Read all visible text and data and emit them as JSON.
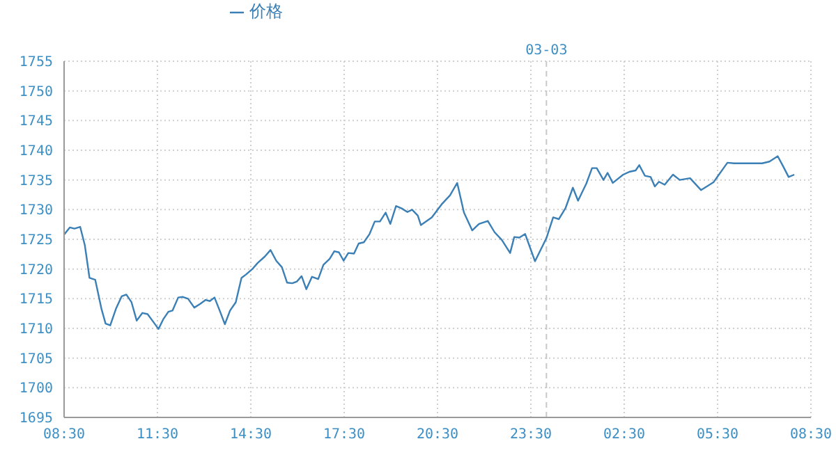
{
  "chart_data": {
    "type": "line",
    "legend": "top",
    "grid": true,
    "marker": "none",
    "line_style": "solid",
    "xlim": [
      "--03-02T08:30",
      "--03-03T08:30"
    ],
    "xticks": [
      {
        "value": "--03-02T08:30",
        "label": "08:30"
      },
      {
        "value": "--03-02T11:30",
        "label": "11:30"
      },
      {
        "value": "--03-02T14:30",
        "label": "14:30"
      },
      {
        "value": "--03-02T17:30",
        "label": "17:30"
      },
      {
        "value": "--03-02T20:30",
        "label": "20:30"
      },
      {
        "value": "--03-02T23:30",
        "label": "23:30"
      },
      {
        "value": "--03-03T02:30",
        "label": "02:30"
      },
      {
        "value": "--03-03T05:30",
        "label": "05:30"
      },
      {
        "value": "--03-03T08:30",
        "label": "08:30"
      }
    ],
    "ylim": [
      1695,
      1755
    ],
    "yticks": [
      1695,
      1700,
      1705,
      1710,
      1715,
      1720,
      1725,
      1730,
      1735,
      1740,
      1745,
      1750,
      1755
    ],
    "ref_lines": [
      {
        "axis": "x",
        "value": "--03-03",
        "label": "03-03",
        "color": "#c8c8c8",
        "line_style": "dashed"
      }
    ],
    "x": [
      "--03-02T08:30",
      "--03-02T08:41",
      "--03-02T08:50",
      "--03-02T09:01",
      "--03-02T09:10",
      "--03-02T09:19",
      "--03-02T09:30",
      "--03-02T09:42",
      "--03-02T09:50",
      "--03-02T09:59",
      "--03-02T10:10",
      "--03-02T10:21",
      "--03-02T10:30",
      "--03-02T10:40",
      "--03-02T10:50",
      "--03-02T11:01",
      "--03-02T11:11",
      "--03-02T11:22",
      "--03-02T11:32",
      "--03-02T11:41",
      "--03-02T11:51",
      "--03-02T11:59",
      "--03-02T12:10",
      "--03-02T12:19",
      "--03-02T12:29",
      "--03-02T12:41",
      "--03-02T12:52",
      "--03-02T13:03",
      "--03-02T13:11",
      "--03-02T13:20",
      "--03-02T13:30",
      "--03-02T13:40",
      "--03-02T13:50",
      "--03-02T14:01",
      "--03-02T14:12",
      "--03-02T14:21",
      "--03-02T14:33",
      "--03-02T14:43",
      "--03-02T14:57",
      "--03-02T15:08",
      "--03-02T15:19",
      "--03-02T15:30",
      "--03-02T15:40",
      "--03-02T15:50",
      "--03-02T15:59",
      "--03-02T16:08",
      "--03-02T16:17",
      "--03-02T16:28",
      "--03-02T16:40",
      "--03-02T16:50",
      "--03-02T17:02",
      "--03-02T17:11",
      "--03-02T17:20",
      "--03-02T17:29",
      "--03-02T17:38",
      "--03-02T17:49",
      "--03-02T17:58",
      "--03-02T18:08",
      "--03-02T18:19",
      "--03-02T18:29",
      "--03-02T18:39",
      "--03-02T18:50",
      "--03-02T18:59",
      "--03-02T19:10",
      "--03-02T19:21",
      "--03-02T19:32",
      "--03-02T19:41",
      "--03-02T19:52",
      "--03-02T19:58",
      "--03-02T20:19",
      "--03-02T20:38",
      "--03-02T20:54",
      "--03-02T21:08",
      "--03-02T21:21",
      "--03-02T21:37",
      "--03-02T21:50",
      "--03-02T22:07",
      "--03-02T22:20",
      "--03-02T22:34",
      "--03-02T22:50",
      "--03-02T22:58",
      "--03-02T23:08",
      "--03-02T23:19",
      "--03-02T23:38",
      "--03-03T00:00",
      "--03-03T00:13",
      "--03-03T00:24",
      "--03-03T00:37",
      "--03-03T00:51",
      "--03-03T01:01",
      "--03-03T01:17",
      "--03-03T01:28",
      "--03-03T01:37",
      "--03-03T01:50",
      "--03-03T01:58",
      "--03-03T02:08",
      "--03-03T02:28",
      "--03-03T02:41",
      "--03-03T02:52",
      "--03-03T02:59",
      "--03-03T03:10",
      "--03-03T03:21",
      "--03-03T03:29",
      "--03-03T03:37",
      "--03-03T03:48",
      "--03-03T04:04",
      "--03-03T04:17",
      "--03-03T04:37",
      "--03-03T04:58",
      "--03-03T05:22",
      "--03-03T05:49",
      "--03-03T06:02",
      "--03-03T06:56",
      "--03-03T07:10",
      "--03-03T07:26",
      "--03-03T07:37",
      "--03-03T07:47",
      "--03-03T07:58"
    ],
    "series": [
      {
        "name": "价格",
        "color": "#3a7fb5",
        "values": [
          1725.8,
          1727.0,
          1726.8,
          1727.1,
          1724.0,
          1718.5,
          1718.2,
          1713.3,
          1710.8,
          1710.5,
          1713.3,
          1715.4,
          1715.7,
          1714.4,
          1711.3,
          1712.6,
          1712.4,
          1711.1,
          1709.9,
          1711.5,
          1712.8,
          1713.0,
          1715.2,
          1715.3,
          1715.0,
          1713.5,
          1714.1,
          1714.8,
          1714.6,
          1715.2,
          1713.0,
          1710.7,
          1713.0,
          1714.4,
          1718.5,
          1719.1,
          1720.0,
          1721.0,
          1722.1,
          1723.2,
          1721.4,
          1720.3,
          1717.7,
          1717.6,
          1717.9,
          1718.8,
          1716.6,
          1718.7,
          1718.3,
          1720.7,
          1721.7,
          1723.0,
          1722.8,
          1721.4,
          1722.7,
          1722.6,
          1724.3,
          1724.5,
          1725.9,
          1728.0,
          1728.0,
          1729.5,
          1727.6,
          1730.6,
          1730.2,
          1729.6,
          1730.0,
          1729.0,
          1727.4,
          1728.7,
          1730.9,
          1732.4,
          1734.5,
          1729.5,
          1726.5,
          1727.6,
          1728.1,
          1726.2,
          1724.9,
          1722.7,
          1725.4,
          1725.3,
          1725.9,
          1721.3,
          1725.2,
          1728.7,
          1728.4,
          1730.3,
          1733.7,
          1731.5,
          1734.4,
          1737.0,
          1737.0,
          1735.0,
          1736.2,
          1734.5,
          1735.9,
          1736.4,
          1736.6,
          1737.5,
          1735.7,
          1735.5,
          1733.9,
          1734.7,
          1734.2,
          1735.9,
          1735.0,
          1735.3,
          1733.3,
          1734.6,
          1737.9,
          1737.8,
          1737.8,
          1738.1,
          1739.0,
          1737.2,
          1735.5,
          1735.9
        ]
      }
    ]
  }
}
